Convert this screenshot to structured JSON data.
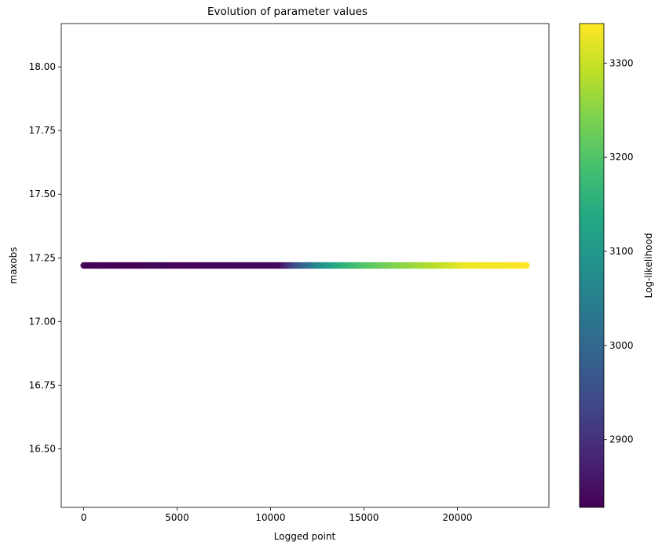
{
  "chart_data": {
    "type": "scatter",
    "title": "Evolution of parameter values",
    "xlabel": "Logged point",
    "ylabel": "maxobs",
    "colorbar_label": "Log-likelihood",
    "xlim": [
      -1200,
      24900
    ],
    "ylim": [
      16.27,
      18.17
    ],
    "xticks": [
      0,
      5000,
      10000,
      15000,
      20000
    ],
    "xtick_labels": [
      "0",
      "5000",
      "10000",
      "15000",
      "20000"
    ],
    "yticks": [
      16.5,
      16.75,
      17.0,
      17.25,
      17.5,
      17.75,
      18.0
    ],
    "ytick_labels": [
      "16.50",
      "16.75",
      "17.00",
      "17.25",
      "17.50",
      "17.75",
      "18.00"
    ],
    "colorbar_range": [
      2828,
      3342
    ],
    "colorbar_ticks": [
      2900,
      3000,
      3100,
      3200,
      3300
    ],
    "colorbar_tick_labels": [
      "2900",
      "3000",
      "3100",
      "3200",
      "3300"
    ],
    "colormap": "viridis",
    "grid": false,
    "series": [
      {
        "y_constant": 17.22,
        "x_start": 0,
        "x_end": 23700,
        "x_step": 100,
        "points_y": 17.22,
        "color_stops": [
          {
            "x": 0,
            "c": 2830
          },
          {
            "x": 10500,
            "c": 2840
          },
          {
            "x": 11500,
            "c": 2960
          },
          {
            "x": 12500,
            "c": 3060
          },
          {
            "x": 13500,
            "c": 3140
          },
          {
            "x": 15000,
            "c": 3200
          },
          {
            "x": 17000,
            "c": 3250
          },
          {
            "x": 19000,
            "c": 3290
          },
          {
            "x": 20500,
            "c": 3330
          },
          {
            "x": 23700,
            "c": 3340
          }
        ]
      }
    ]
  }
}
